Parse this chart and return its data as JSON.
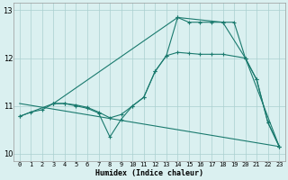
{
  "xlabel": "Humidex (Indice chaleur)",
  "bg_color": "#daf0f0",
  "line_color": "#1a7a6e",
  "grid_color": "#aacfcf",
  "xlim": [
    -0.5,
    23.5
  ],
  "ylim": [
    9.85,
    13.15
  ],
  "xticks": [
    0,
    1,
    2,
    3,
    4,
    5,
    6,
    7,
    8,
    9,
    10,
    11,
    12,
    13,
    14,
    15,
    16,
    17,
    18,
    19,
    20,
    21,
    22,
    23
  ],
  "yticks": [
    10,
    11,
    12,
    13
  ],
  "line1_x": [
    0,
    1,
    2,
    3,
    4,
    5,
    6,
    7,
    8,
    9,
    10,
    11,
    12,
    13,
    14,
    15,
    16,
    17,
    18,
    20,
    21,
    22,
    23
  ],
  "line1_y": [
    10.78,
    10.87,
    10.92,
    11.05,
    11.05,
    11.02,
    10.97,
    10.87,
    10.75,
    10.82,
    11.0,
    11.18,
    11.72,
    12.05,
    12.12,
    12.1,
    12.08,
    12.08,
    12.08,
    12.0,
    11.55,
    10.65,
    10.15
  ],
  "line2_x": [
    0,
    3,
    14,
    18,
    20,
    23
  ],
  "line2_y": [
    10.78,
    11.05,
    12.85,
    12.75,
    12.0,
    10.15
  ],
  "line3_x": [
    3,
    4,
    5,
    6,
    7,
    8,
    9,
    10,
    11,
    12,
    13,
    14,
    15,
    16,
    17,
    18,
    19,
    20,
    21,
    22,
    23
  ],
  "line3_y": [
    11.05,
    11.05,
    11.0,
    10.95,
    10.85,
    10.35,
    10.72,
    11.0,
    11.18,
    11.72,
    12.05,
    12.85,
    12.75,
    12.75,
    12.75,
    12.75,
    12.75,
    12.0,
    11.55,
    10.65,
    10.15
  ],
  "line4_x": [
    0,
    23
  ],
  "line4_y": [
    11.05,
    10.15
  ]
}
